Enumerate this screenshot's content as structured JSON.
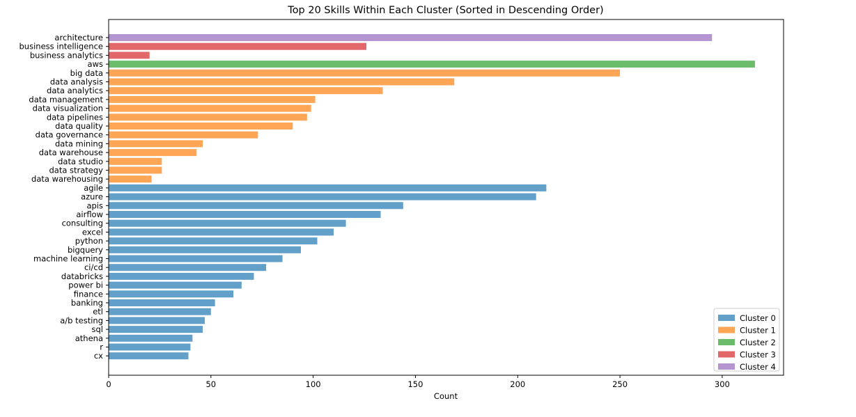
{
  "chart_data": {
    "type": "bar",
    "orientation": "horizontal",
    "title": "Top 20 Skills Within Each Cluster (Sorted in Descending Order)",
    "xlabel": "Count",
    "ylabel": "",
    "xlim": [
      0,
      330
    ],
    "xticks": [
      0,
      50,
      100,
      150,
      200,
      250,
      300
    ],
    "grid": false,
    "legend_position": "lower-right",
    "clusters": [
      {
        "name": "Cluster 0",
        "color": "#1f77b4"
      },
      {
        "name": "Cluster 1",
        "color": "#ff7f0e"
      },
      {
        "name": "Cluster 2",
        "color": "#2ca02c"
      },
      {
        "name": "Cluster 3",
        "color": "#d62728"
      },
      {
        "name": "Cluster 4",
        "color": "#9467bd"
      }
    ],
    "bars": [
      {
        "label": "architecture",
        "value": 295,
        "cluster": 4
      },
      {
        "label": "business intelligence",
        "value": 126,
        "cluster": 3
      },
      {
        "label": "business analytics",
        "value": 20,
        "cluster": 3
      },
      {
        "label": "aws",
        "value": 316,
        "cluster": 2
      },
      {
        "label": "big data",
        "value": 250,
        "cluster": 1
      },
      {
        "label": "data analysis",
        "value": 169,
        "cluster": 1
      },
      {
        "label": "data analytics",
        "value": 134,
        "cluster": 1
      },
      {
        "label": "data management",
        "value": 101,
        "cluster": 1
      },
      {
        "label": "data visualization",
        "value": 99,
        "cluster": 1
      },
      {
        "label": "data pipelines",
        "value": 97,
        "cluster": 1
      },
      {
        "label": "data quality",
        "value": 90,
        "cluster": 1
      },
      {
        "label": "data governance",
        "value": 73,
        "cluster": 1
      },
      {
        "label": "data mining",
        "value": 46,
        "cluster": 1
      },
      {
        "label": "data warehouse",
        "value": 43,
        "cluster": 1
      },
      {
        "label": "data studio",
        "value": 26,
        "cluster": 1
      },
      {
        "label": "data strategy",
        "value": 26,
        "cluster": 1
      },
      {
        "label": "data warehousing",
        "value": 21,
        "cluster": 1
      },
      {
        "label": "agile",
        "value": 214,
        "cluster": 0
      },
      {
        "label": "azure",
        "value": 209,
        "cluster": 0
      },
      {
        "label": "apis",
        "value": 144,
        "cluster": 0
      },
      {
        "label": "airflow",
        "value": 133,
        "cluster": 0
      },
      {
        "label": "consulting",
        "value": 116,
        "cluster": 0
      },
      {
        "label": "excel",
        "value": 110,
        "cluster": 0
      },
      {
        "label": "python",
        "value": 102,
        "cluster": 0
      },
      {
        "label": "bigquery",
        "value": 94,
        "cluster": 0
      },
      {
        "label": "machine learning",
        "value": 85,
        "cluster": 0
      },
      {
        "label": "ci/cd",
        "value": 77,
        "cluster": 0
      },
      {
        "label": "databricks",
        "value": 71,
        "cluster": 0
      },
      {
        "label": "power bi",
        "value": 65,
        "cluster": 0
      },
      {
        "label": "finance",
        "value": 61,
        "cluster": 0
      },
      {
        "label": "banking",
        "value": 52,
        "cluster": 0
      },
      {
        "label": "etl",
        "value": 50,
        "cluster": 0
      },
      {
        "label": "a/b testing",
        "value": 47,
        "cluster": 0
      },
      {
        "label": "sql",
        "value": 46,
        "cluster": 0
      },
      {
        "label": "athena",
        "value": 41,
        "cluster": 0
      },
      {
        "label": "r",
        "value": 40,
        "cluster": 0
      },
      {
        "label": "cx",
        "value": 39,
        "cluster": 0
      }
    ]
  }
}
